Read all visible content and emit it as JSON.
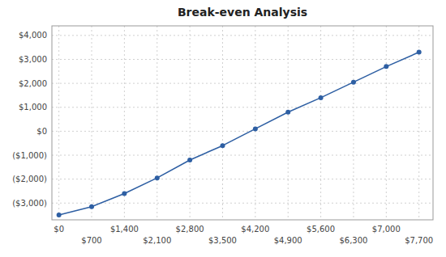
{
  "chart_data": {
    "type": "line",
    "title": "Break-even Analysis",
    "x": [
      0,
      700,
      1400,
      2100,
      2800,
      3500,
      4200,
      4900,
      5600,
      6300,
      7000,
      7700
    ],
    "values": [
      -3500,
      -3150,
      -2600,
      -1950,
      -1200,
      -600,
      100,
      800,
      1400,
      2050,
      2700,
      3300
    ],
    "color": "#2E5FA3",
    "marker": "circle",
    "grid": true,
    "xlim": [
      -150,
      8000
    ],
    "ylim": [
      -3700,
      4400
    ],
    "xticks": [
      {
        "value": 0,
        "label": "$0"
      },
      {
        "value": 700,
        "label": "$700"
      },
      {
        "value": 1400,
        "label": "$1,400"
      },
      {
        "value": 2100,
        "label": "$2,100"
      },
      {
        "value": 2800,
        "label": "$2,800"
      },
      {
        "value": 3500,
        "label": "$3,500"
      },
      {
        "value": 4200,
        "label": "$4,200"
      },
      {
        "value": 4900,
        "label": "$4,900"
      },
      {
        "value": 5600,
        "label": "$5,600"
      },
      {
        "value": 6300,
        "label": "$6,300"
      },
      {
        "value": 7000,
        "label": "$7,000"
      },
      {
        "value": 7700,
        "label": "$7,700"
      }
    ],
    "yticks": [
      {
        "value": -3000,
        "label": "($3,000)"
      },
      {
        "value": -2000,
        "label": "($2,000)"
      },
      {
        "value": -1000,
        "label": "($1,000)"
      },
      {
        "value": 0,
        "label": "$0"
      },
      {
        "value": 1000,
        "label": "$1,000"
      },
      {
        "value": 2000,
        "label": "$2,000"
      },
      {
        "value": 3000,
        "label": "$3,000"
      },
      {
        "value": 4000,
        "label": "$4,000"
      }
    ]
  }
}
